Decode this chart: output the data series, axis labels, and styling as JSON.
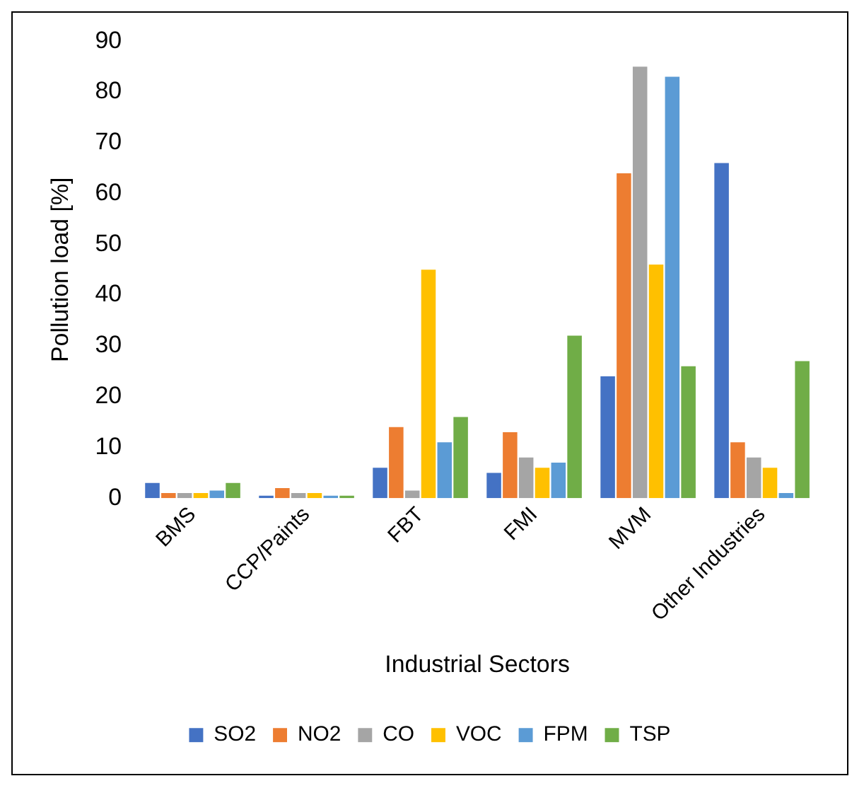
{
  "chart_data": {
    "type": "bar",
    "xlabel": "Industrial Sectors",
    "ylabel": "Pollution load [%]",
    "categories": [
      "BMS",
      "CCP/Paints",
      "FBT",
      "FMI",
      "MVM",
      "Other Industries"
    ],
    "series": [
      {
        "name": "SO2",
        "color": "#4472c4",
        "values": [
          3,
          0.5,
          6,
          5,
          24,
          66
        ]
      },
      {
        "name": "NO2",
        "color": "#ed7d31",
        "values": [
          1,
          2,
          14,
          13,
          64,
          11
        ]
      },
      {
        "name": "CO",
        "color": "#a5a5a5",
        "values": [
          1,
          1,
          1.5,
          8,
          85,
          8
        ]
      },
      {
        "name": "VOC",
        "color": "#ffc000",
        "values": [
          1,
          1,
          45,
          6,
          46,
          6
        ]
      },
      {
        "name": "FPM",
        "color": "#5b9bd5",
        "values": [
          1.5,
          0.5,
          11,
          7,
          83,
          1
        ]
      },
      {
        "name": "TSP",
        "color": "#70ad47",
        "values": [
          3,
          0.5,
          16,
          32,
          26,
          27
        ]
      }
    ],
    "ylim": [
      0,
      90
    ],
    "yticks": [
      0,
      10,
      20,
      30,
      40,
      50,
      60,
      70,
      80,
      90
    ],
    "grid": false,
    "legend": "bottom"
  }
}
